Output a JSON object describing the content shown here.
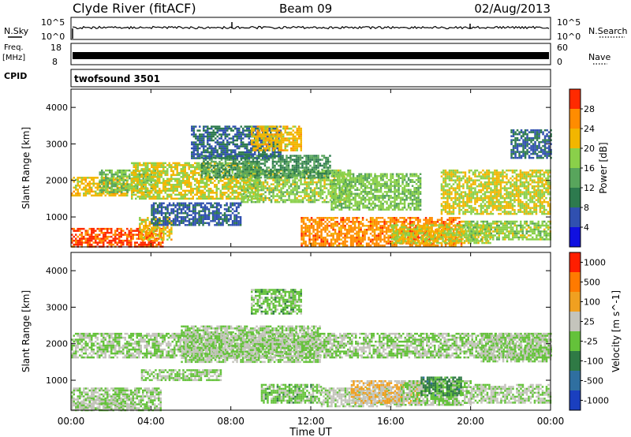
{
  "header": {
    "station": "Clyde River (fitACF)",
    "beam": "Beam 09",
    "date": "02/Aug/2013"
  },
  "side_labels": {
    "nsky": "N.Sky",
    "freq": "Freq.",
    "freq_unit": "[MHz]",
    "cpid": "CPID",
    "nsearch": "N.Search",
    "nave": "Nave"
  },
  "mini_axes": {
    "noise_top_left": "10^5",
    "noise_bottom_left": "10^0",
    "noise_top_right": "10^5",
    "noise_bottom_right": "10^0",
    "freq_top_left": "18",
    "freq_bottom_left": "8",
    "nave_top_right": "60",
    "nave_bottom_right": "0"
  },
  "cpid_text": "twofsound 3501",
  "x_axis": {
    "label": "Time UT",
    "ticks": [
      "00:00",
      "04:00",
      "08:00",
      "12:00",
      "16:00",
      "20:00",
      "00:00"
    ],
    "range_hours": [
      0,
      24
    ]
  },
  "chart_data": [
    {
      "type": "heatmap",
      "name": "power",
      "ylabel": "Slant Range [km]",
      "yticks": [
        "1000",
        "2000",
        "3000",
        "4000"
      ],
      "ylim": [
        180,
        4500
      ],
      "colorbar": {
        "label": "Power [dB]",
        "ticks": [
          "4",
          "8",
          "12",
          "16",
          "20",
          "24",
          "28"
        ],
        "range": [
          0,
          32
        ],
        "colors": [
          "#1010e0",
          "#3050b0",
          "#2d7a4e",
          "#58a55c",
          "#8ad04a",
          "#f2b600",
          "#ff8c00",
          "#ff2a00"
        ]
      },
      "regions": [
        {
          "t0": 0.0,
          "t1": 4.6,
          "r0": 200,
          "r1": 700,
          "level": 29
        },
        {
          "t0": 3.4,
          "t1": 5.0,
          "r0": 400,
          "r1": 1000,
          "level": 22
        },
        {
          "t0": 0.0,
          "t1": 2.8,
          "r0": 1600,
          "r1": 2100,
          "level": 22
        },
        {
          "t0": 1.4,
          "t1": 4.2,
          "r0": 1700,
          "r1": 2300,
          "level": 16
        },
        {
          "t0": 3.0,
          "t1": 9.5,
          "r0": 1500,
          "r1": 2500,
          "level": 20
        },
        {
          "t0": 8.5,
          "t1": 14.0,
          "r0": 1400,
          "r1": 2300,
          "level": 18
        },
        {
          "t0": 6.5,
          "t1": 13.0,
          "r0": 2100,
          "r1": 2700,
          "level": 12
        },
        {
          "t0": 13.0,
          "t1": 17.5,
          "r0": 1200,
          "r1": 2200,
          "level": 17
        },
        {
          "t0": 11.5,
          "t1": 19.5,
          "r0": 200,
          "r1": 1000,
          "level": 26
        },
        {
          "t0": 16.0,
          "t1": 21.0,
          "r0": 300,
          "r1": 800,
          "level": 20
        },
        {
          "t0": 18.5,
          "t1": 24.0,
          "r0": 1100,
          "r1": 2300,
          "level": 20
        },
        {
          "t0": 19.5,
          "t1": 24.0,
          "r0": 400,
          "r1": 900,
          "level": 18
        },
        {
          "t0": 6.0,
          "t1": 10.5,
          "r0": 2600,
          "r1": 3500,
          "level": 8
        },
        {
          "t0": 9.0,
          "t1": 11.5,
          "r0": 2800,
          "r1": 3500,
          "level": 22
        },
        {
          "t0": 4.0,
          "t1": 8.5,
          "r0": 800,
          "r1": 1400,
          "level": 7
        },
        {
          "t0": 22.0,
          "t1": 24.0,
          "r0": 2600,
          "r1": 3400,
          "level": 8
        }
      ]
    },
    {
      "type": "heatmap",
      "name": "velocity",
      "ylabel": "Slant Range [km]",
      "yticks": [
        "1000",
        "2000",
        "3000",
        "4000"
      ],
      "ylim": [
        180,
        4500
      ],
      "colorbar": {
        "label": "Velocity [m s^-1]",
        "ticks": [
          "1000",
          "500",
          "100",
          "25",
          "-25",
          "-100",
          "-500",
          "-1000"
        ],
        "range": [
          -1200,
          1200
        ],
        "colors": [
          "#1a3fbf",
          "#2f6fa0",
          "#2f7a45",
          "#64c23a",
          "#c4c4bc",
          "#f0a020",
          "#ff7a00",
          "#ff1e00"
        ]
      },
      "regions": [
        {
          "t0": 0.0,
          "t1": 24.0,
          "r0": 1600,
          "r1": 2300,
          "level": 0
        },
        {
          "t0": 5.5,
          "t1": 12.5,
          "r0": 1500,
          "r1": 2500,
          "level": 0
        },
        {
          "t0": 0.0,
          "t1": 4.5,
          "r0": 200,
          "r1": 800,
          "level": 0
        },
        {
          "t0": 0.0,
          "t1": 3.0,
          "r0": 200,
          "r1": 500,
          "level": 80
        },
        {
          "t0": 9.0,
          "t1": 11.5,
          "r0": 2800,
          "r1": 3500,
          "level": -150
        },
        {
          "t0": 9.5,
          "t1": 12.5,
          "r0": 400,
          "r1": 900,
          "level": -110
        },
        {
          "t0": 12.5,
          "t1": 16.5,
          "r0": 300,
          "r1": 800,
          "level": 90
        },
        {
          "t0": 14.0,
          "t1": 17.5,
          "r0": 400,
          "r1": 1000,
          "level": 300
        },
        {
          "t0": 16.5,
          "t1": 20.0,
          "r0": 300,
          "r1": 1000,
          "level": 0
        },
        {
          "t0": 17.5,
          "t1": 19.5,
          "r0": 600,
          "r1": 1100,
          "level": -400
        },
        {
          "t0": 20.0,
          "t1": 24.0,
          "r0": 400,
          "r1": 900,
          "level": 60
        },
        {
          "t0": 20.5,
          "t1": 24.0,
          "r0": 1500,
          "r1": 2300,
          "level": 0
        },
        {
          "t0": 3.5,
          "t1": 7.5,
          "r0": 1000,
          "r1": 1300,
          "level": -60
        }
      ]
    }
  ]
}
